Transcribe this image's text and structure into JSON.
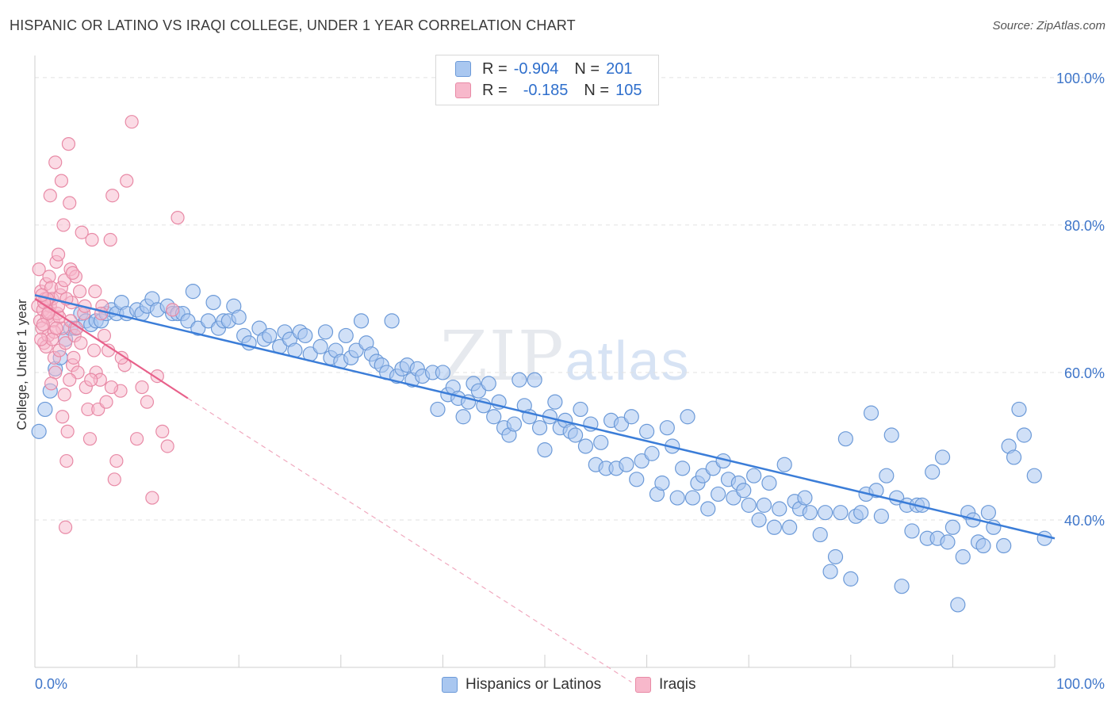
{
  "title": "HISPANIC OR LATINO VS IRAQI COLLEGE, UNDER 1 YEAR CORRELATION CHART",
  "source": "Source: ZipAtlas.com",
  "watermark": {
    "zip": "ZIP",
    "atlas": "atlas"
  },
  "legend_top": {
    "rows": [
      {
        "r_label": "R =",
        "r_value": "-0.904",
        "n_label": "N =",
        "n_value": "201",
        "color": "#a9c7f0"
      },
      {
        "r_label": "R =",
        "r_value": "-0.185",
        "n_label": "N =",
        "n_value": "105",
        "color": "#f7b8cb"
      }
    ]
  },
  "legend_bottom": [
    {
      "label": "Hispanics or Latinos",
      "color": "#a9c7f0"
    },
    {
      "label": "Iraqis",
      "color": "#f7b8cb"
    }
  ],
  "chart_data": {
    "type": "scatter",
    "title": "HISPANIC OR LATINO VS IRAQI COLLEGE, UNDER 1 YEAR CORRELATION CHART",
    "xlabel": "",
    "ylabel": "College, Under 1 year",
    "x_tick_labels": [
      "0.0%",
      "100.0%"
    ],
    "y_tick_labels": [
      "40.0%",
      "60.0%",
      "80.0%",
      "100.0%"
    ],
    "xlim": [
      0,
      100
    ],
    "ylim": [
      20,
      103
    ],
    "grid": true,
    "colors": {
      "blue": "#3b7dd8",
      "pink": "#e8608a",
      "blue_fill": "#a9c7f0",
      "pink_fill": "#f7b8cb"
    },
    "series": [
      {
        "name": "Hispanics or Latinos",
        "trend": {
          "x": [
            0,
            100
          ],
          "y": [
            70.5,
            37.5
          ]
        },
        "points": [
          [
            0.4,
            52
          ],
          [
            1,
            55
          ],
          [
            1.5,
            57.5
          ],
          [
            2,
            60.5
          ],
          [
            2.5,
            62
          ],
          [
            3,
            64.5
          ],
          [
            3.5,
            66
          ],
          [
            4,
            66
          ],
          [
            4.5,
            68
          ],
          [
            5,
            67
          ],
          [
            5.5,
            66.5
          ],
          [
            6,
            67
          ],
          [
            6.5,
            67
          ],
          [
            7,
            68
          ],
          [
            7.5,
            68.5
          ],
          [
            8,
            68
          ],
          [
            8.5,
            69.5
          ],
          [
            9,
            68
          ],
          [
            10,
            68.5
          ],
          [
            10.5,
            68
          ],
          [
            11,
            69
          ],
          [
            11.5,
            70
          ],
          [
            12,
            68.5
          ],
          [
            13,
            69
          ],
          [
            13.5,
            68
          ],
          [
            14,
            68
          ],
          [
            14.5,
            68
          ],
          [
            15,
            67
          ],
          [
            16,
            66
          ],
          [
            15.5,
            71
          ],
          [
            17,
            67
          ],
          [
            17.5,
            69.5
          ],
          [
            18,
            66
          ],
          [
            18.5,
            67
          ],
          [
            19,
            67
          ],
          [
            19.5,
            69
          ],
          [
            20,
            67.5
          ],
          [
            20.5,
            65
          ],
          [
            21,
            64
          ],
          [
            22,
            66
          ],
          [
            22.5,
            64.5
          ],
          [
            23,
            65
          ],
          [
            24,
            63.5
          ],
          [
            24.5,
            65.5
          ],
          [
            25,
            64.5
          ],
          [
            25.5,
            63
          ],
          [
            26,
            65.5
          ],
          [
            26.5,
            65
          ],
          [
            27,
            62.5
          ],
          [
            28,
            63.5
          ],
          [
            28.5,
            65.5
          ],
          [
            29,
            62
          ],
          [
            29.5,
            63
          ],
          [
            30,
            61.5
          ],
          [
            30.5,
            65
          ],
          [
            31,
            62
          ],
          [
            31.5,
            63
          ],
          [
            32,
            67
          ],
          [
            32.5,
            64
          ],
          [
            33,
            62.5
          ],
          [
            33.5,
            61.5
          ],
          [
            34,
            61
          ],
          [
            34.5,
            60
          ],
          [
            35,
            67
          ],
          [
            35.5,
            59.5
          ],
          [
            36,
            60.5
          ],
          [
            36.5,
            61
          ],
          [
            37,
            59
          ],
          [
            37.5,
            60.5
          ],
          [
            38,
            59.5
          ],
          [
            39,
            60
          ],
          [
            39.5,
            55
          ],
          [
            40,
            60
          ],
          [
            40.5,
            57
          ],
          [
            41,
            58
          ],
          [
            41.5,
            56.5
          ],
          [
            42,
            54
          ],
          [
            42.5,
            56
          ],
          [
            43,
            58.5
          ],
          [
            43.5,
            57.5
          ],
          [
            44,
            55.5
          ],
          [
            44.5,
            58.5
          ],
          [
            45,
            54
          ],
          [
            45.5,
            56
          ],
          [
            46,
            52.5
          ],
          [
            46.5,
            51.5
          ],
          [
            47,
            53
          ],
          [
            47.5,
            59
          ],
          [
            48,
            55.5
          ],
          [
            48.5,
            54
          ],
          [
            49,
            59
          ],
          [
            49.5,
            52.5
          ],
          [
            50,
            49.5
          ],
          [
            50.5,
            54
          ],
          [
            51,
            56
          ],
          [
            51.5,
            52.5
          ],
          [
            52,
            53.5
          ],
          [
            52.5,
            52
          ],
          [
            53,
            51.5
          ],
          [
            53.5,
            55
          ],
          [
            54,
            50
          ],
          [
            54.5,
            53
          ],
          [
            55,
            47.5
          ],
          [
            55.5,
            50.5
          ],
          [
            56,
            47
          ],
          [
            56.5,
            53.5
          ],
          [
            57,
            47
          ],
          [
            57.5,
            53
          ],
          [
            58,
            47.5
          ],
          [
            58.5,
            54
          ],
          [
            59,
            45.5
          ],
          [
            59.5,
            48
          ],
          [
            60,
            52
          ],
          [
            60.5,
            49
          ],
          [
            61,
            43.5
          ],
          [
            61.5,
            45
          ],
          [
            62,
            52.5
          ],
          [
            62.5,
            50
          ],
          [
            63,
            43
          ],
          [
            63.5,
            47
          ],
          [
            64,
            54
          ],
          [
            64.5,
            43
          ],
          [
            65,
            45
          ],
          [
            65.5,
            46
          ],
          [
            66,
            41.5
          ],
          [
            66.5,
            47
          ],
          [
            67,
            43.5
          ],
          [
            67.5,
            48
          ],
          [
            68,
            45.5
          ],
          [
            68.5,
            43
          ],
          [
            69,
            45
          ],
          [
            69.5,
            44
          ],
          [
            70,
            42
          ],
          [
            70.5,
            46
          ],
          [
            71,
            40
          ],
          [
            71.5,
            42
          ],
          [
            72,
            45
          ],
          [
            72.5,
            39
          ],
          [
            73,
            41.5
          ],
          [
            73.5,
            47.5
          ],
          [
            74,
            39
          ],
          [
            74.5,
            42.5
          ],
          [
            75,
            41.5
          ],
          [
            75.5,
            43
          ],
          [
            76,
            41
          ],
          [
            77,
            38
          ],
          [
            77.5,
            41
          ],
          [
            78,
            33
          ],
          [
            78.5,
            35
          ],
          [
            79,
            41
          ],
          [
            79.5,
            51
          ],
          [
            80,
            32
          ],
          [
            80.5,
            40.5
          ],
          [
            81,
            41
          ],
          [
            81.5,
            43.5
          ],
          [
            82,
            54.5
          ],
          [
            82.5,
            44
          ],
          [
            83,
            40.5
          ],
          [
            83.5,
            46
          ],
          [
            84,
            51.5
          ],
          [
            84.5,
            43
          ],
          [
            85,
            31
          ],
          [
            85.5,
            42
          ],
          [
            86,
            38.5
          ],
          [
            86.5,
            42
          ],
          [
            87,
            42
          ],
          [
            87.5,
            37.5
          ],
          [
            88,
            46.5
          ],
          [
            88.5,
            37.5
          ],
          [
            89,
            48.5
          ],
          [
            89.5,
            37
          ],
          [
            90,
            39
          ],
          [
            90.5,
            28.5
          ],
          [
            91,
            35
          ],
          [
            91.5,
            41
          ],
          [
            92,
            40
          ],
          [
            92.5,
            37
          ],
          [
            93,
            36.5
          ],
          [
            93.5,
            41
          ],
          [
            94,
            39
          ],
          [
            95,
            36.5
          ],
          [
            95.5,
            50
          ],
          [
            96,
            48.5
          ],
          [
            96.5,
            55
          ],
          [
            97,
            51.5
          ],
          [
            98,
            46
          ],
          [
            99,
            37.5
          ]
        ]
      },
      {
        "name": "Iraqis",
        "trend": {
          "x": [
            0,
            15
          ],
          "y": [
            70,
            56.5
          ]
        },
        "trend_dashed": {
          "x": [
            15,
            58.5
          ],
          "y": [
            56.5,
            18
          ]
        },
        "points": [
          [
            0.3,
            69
          ],
          [
            0.4,
            74
          ],
          [
            0.5,
            67
          ],
          [
            0.6,
            71
          ],
          [
            0.7,
            66
          ],
          [
            0.8,
            68.5
          ],
          [
            0.9,
            64
          ],
          [
            1,
            70
          ],
          [
            1.1,
            72
          ],
          [
            1.2,
            67.5
          ],
          [
            1.3,
            65
          ],
          [
            1.4,
            73
          ],
          [
            1.5,
            69
          ],
          [
            1.6,
            71.5
          ],
          [
            1.7,
            70
          ],
          [
            1.8,
            67
          ],
          [
            1.9,
            62
          ],
          [
            2,
            60
          ],
          [
            2.1,
            75
          ],
          [
            2.2,
            68
          ],
          [
            2.3,
            76
          ],
          [
            2.4,
            63
          ],
          [
            2.5,
            70.5
          ],
          [
            2.6,
            86
          ],
          [
            2.7,
            66
          ],
          [
            2.8,
            80
          ],
          [
            2.9,
            57
          ],
          [
            3,
            64
          ],
          [
            3.1,
            48
          ],
          [
            3.2,
            52
          ],
          [
            3.3,
            91
          ],
          [
            3.4,
            83
          ],
          [
            3.5,
            74
          ],
          [
            3.6,
            69.5
          ],
          [
            3.7,
            61
          ],
          [
            3.8,
            62
          ],
          [
            3.9,
            65
          ],
          [
            4,
            73
          ],
          [
            4.2,
            60
          ],
          [
            4.4,
            71
          ],
          [
            4.6,
            79
          ],
          [
            4.8,
            68
          ],
          [
            5,
            58
          ],
          [
            5.2,
            55
          ],
          [
            5.4,
            51
          ],
          [
            5.6,
            78
          ],
          [
            5.8,
            63
          ],
          [
            6,
            60
          ],
          [
            6.2,
            55
          ],
          [
            6.4,
            59
          ],
          [
            6.6,
            69
          ],
          [
            6.8,
            65
          ],
          [
            7,
            56
          ],
          [
            7.2,
            63
          ],
          [
            7.4,
            78
          ],
          [
            7.6,
            84
          ],
          [
            7.8,
            45.5
          ],
          [
            8,
            48
          ],
          [
            8.4,
            57.5
          ],
          [
            8.8,
            61
          ],
          [
            9,
            86
          ],
          [
            9.5,
            94
          ],
          [
            10,
            51
          ],
          [
            10.5,
            58
          ],
          [
            11,
            56
          ],
          [
            11.5,
            43
          ],
          [
            12,
            59.5
          ],
          [
            12.5,
            52
          ],
          [
            13,
            50
          ],
          [
            13.5,
            68.5
          ],
          [
            14,
            81
          ],
          [
            2,
            88.5
          ],
          [
            1.5,
            84
          ],
          [
            3,
            39
          ],
          [
            1.2,
            70
          ],
          [
            0.8,
            66.5
          ],
          [
            1.4,
            68.2
          ],
          [
            2.4,
            67.5
          ],
          [
            1.9,
            65.5
          ],
          [
            2.6,
            71.5
          ],
          [
            0.9,
            69.5
          ],
          [
            3.5,
            67
          ],
          [
            4.5,
            64
          ],
          [
            5.5,
            59
          ],
          [
            6.5,
            68
          ],
          [
            7.5,
            58
          ],
          [
            8.5,
            62
          ],
          [
            1.1,
            63.5
          ],
          [
            2.3,
            69
          ],
          [
            0.7,
            70.5
          ],
          [
            1.7,
            64.5
          ],
          [
            3.1,
            70
          ],
          [
            4.1,
            66
          ],
          [
            2.9,
            72.5
          ],
          [
            1.3,
            68
          ],
          [
            0.6,
            64.5
          ],
          [
            2.1,
            66
          ],
          [
            3.7,
            73.5
          ],
          [
            4.9,
            69
          ],
          [
            5.9,
            71
          ],
          [
            1.6,
            58.5
          ],
          [
            2.7,
            54
          ],
          [
            3.4,
            59
          ]
        ]
      }
    ]
  }
}
